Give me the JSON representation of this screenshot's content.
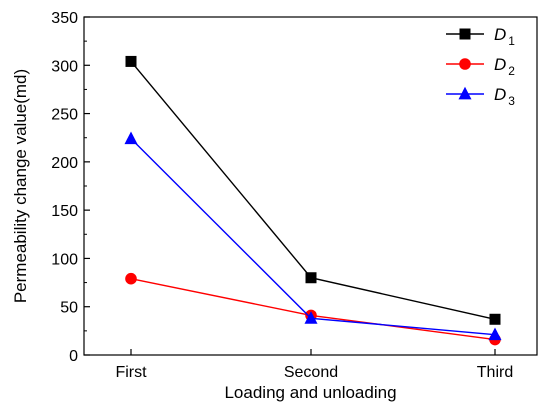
{
  "chart_data": {
    "type": "line",
    "categories": [
      "First",
      "Second",
      "Third"
    ],
    "xlabel": "Loading and unloading",
    "ylabel": "Permeability change value(md)",
    "ylim": [
      0,
      350
    ],
    "yticks": [
      0,
      50,
      100,
      150,
      200,
      250,
      300,
      350
    ],
    "grid": false,
    "legend_position": "top-right",
    "series": [
      {
        "name": "D",
        "subscript": "1",
        "color": "#000000",
        "marker": "square",
        "values": [
          304,
          80,
          37
        ]
      },
      {
        "name": "D",
        "subscript": "2",
        "color": "#ff0000",
        "marker": "circle",
        "values": [
          79,
          41,
          16
        ]
      },
      {
        "name": "D",
        "subscript": "3",
        "color": "#0000ff",
        "marker": "triangle",
        "values": [
          224,
          38,
          21
        ]
      }
    ]
  }
}
